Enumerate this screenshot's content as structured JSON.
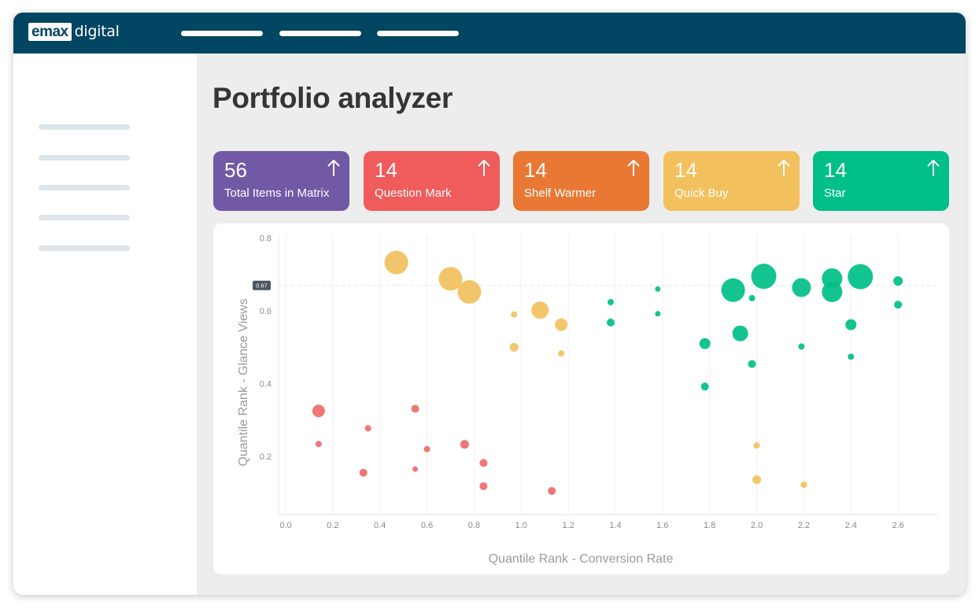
{
  "brand": {
    "logo_box": "emax",
    "logo_text": "digital"
  },
  "header": {
    "nav_items": 3
  },
  "sidebar": {
    "items": 5
  },
  "page": {
    "title": "Portfolio analyzer"
  },
  "cards": [
    {
      "count": "56",
      "label": "Total Items in Matrix",
      "color": "#7159a5",
      "icon": "arrow-up-icon"
    },
    {
      "count": "14",
      "label": "Question Mark",
      "color": "#f05b5b",
      "icon": "arrow-up-icon"
    },
    {
      "count": "14",
      "label": "Shelf Warmer",
      "color": "#e87833",
      "icon": "arrow-up-icon"
    },
    {
      "count": "14",
      "label": "Quick Buy",
      "color": "#f2c05d",
      "icon": "arrow-up-icon"
    },
    {
      "count": "14",
      "label": "Star",
      "color": "#00bf87",
      "icon": "arrow-up-icon"
    }
  ],
  "chart_data": {
    "type": "scatter",
    "xlabel": "Quantile Rank - Conversion Rate",
    "ylabel": "Quantile Rank - Glance Views",
    "xlim": [
      -0.03,
      2.77
    ],
    "ylim": [
      0.04,
      0.81
    ],
    "x_ticks": [
      "0.0",
      "0.2",
      "0.4",
      "0.6",
      "0.8",
      "1.0",
      "1.2",
      "1.4",
      "1.6",
      "1.8",
      "2.0",
      "2.2",
      "2.4",
      "2.6"
    ],
    "x_tick_values": [
      0,
      0.2,
      0.4,
      0.6,
      0.8,
      1.0,
      1.2,
      1.4,
      1.6,
      1.8,
      2.0,
      2.2,
      2.4,
      2.6
    ],
    "y_ticks": [
      "0.2",
      "0.4",
      "0.6",
      "0.8"
    ],
    "y_tick_values": [
      0.2,
      0.4,
      0.6,
      0.8
    ],
    "grid": "vertical",
    "reference_line": {
      "y": 0.67,
      "label": "0.67"
    },
    "series": [
      {
        "color": "#ee6b6b",
        "points": [
          {
            "x": 0.14,
            "y": 0.325,
            "r": 8
          },
          {
            "x": 0.14,
            "y": 0.234,
            "r": 4
          },
          {
            "x": 0.33,
            "y": 0.155,
            "r": 5
          },
          {
            "x": 0.35,
            "y": 0.277,
            "r": 4
          },
          {
            "x": 0.55,
            "y": 0.331,
            "r": 5
          },
          {
            "x": 0.55,
            "y": 0.165,
            "r": 3.5
          },
          {
            "x": 0.6,
            "y": 0.22,
            "r": 4
          },
          {
            "x": 0.76,
            "y": 0.233,
            "r": 5.5
          },
          {
            "x": 0.84,
            "y": 0.182,
            "r": 5
          },
          {
            "x": 0.84,
            "y": 0.118,
            "r": 5
          },
          {
            "x": 1.13,
            "y": 0.105,
            "r": 5
          }
        ]
      },
      {
        "color": "#f2c05d",
        "points": [
          {
            "x": 0.47,
            "y": 0.733,
            "r": 15
          },
          {
            "x": 0.7,
            "y": 0.688,
            "r": 15
          },
          {
            "x": 0.78,
            "y": 0.652,
            "r": 15
          },
          {
            "x": 1.08,
            "y": 0.602,
            "r": 11
          },
          {
            "x": 0.97,
            "y": 0.59,
            "r": 4
          },
          {
            "x": 1.17,
            "y": 0.562,
            "r": 8
          },
          {
            "x": 0.97,
            "y": 0.5,
            "r": 5.5
          },
          {
            "x": 1.17,
            "y": 0.483,
            "r": 4
          },
          {
            "x": 2.0,
            "y": 0.23,
            "r": 4
          },
          {
            "x": 2.0,
            "y": 0.136,
            "r": 5.5
          },
          {
            "x": 2.2,
            "y": 0.122,
            "r": 4
          }
        ]
      },
      {
        "color": "#00bf87",
        "points": [
          {
            "x": 1.38,
            "y": 0.624,
            "r": 4
          },
          {
            "x": 1.58,
            "y": 0.66,
            "r": 3.5
          },
          {
            "x": 1.38,
            "y": 0.568,
            "r": 5
          },
          {
            "x": 1.58,
            "y": 0.592,
            "r": 3.5
          },
          {
            "x": 1.78,
            "y": 0.51,
            "r": 7
          },
          {
            "x": 1.78,
            "y": 0.392,
            "r": 5
          },
          {
            "x": 1.9,
            "y": 0.657,
            "r": 15
          },
          {
            "x": 1.93,
            "y": 0.538,
            "r": 10
          },
          {
            "x": 1.98,
            "y": 0.635,
            "r": 4
          },
          {
            "x": 1.98,
            "y": 0.454,
            "r": 5
          },
          {
            "x": 2.03,
            "y": 0.695,
            "r": 16
          },
          {
            "x": 2.19,
            "y": 0.664,
            "r": 12
          },
          {
            "x": 2.19,
            "y": 0.502,
            "r": 4
          },
          {
            "x": 2.32,
            "y": 0.689,
            "r": 13
          },
          {
            "x": 2.32,
            "y": 0.652,
            "r": 13
          },
          {
            "x": 2.4,
            "y": 0.562,
            "r": 7
          },
          {
            "x": 2.4,
            "y": 0.474,
            "r": 4
          },
          {
            "x": 2.44,
            "y": 0.694,
            "r": 16
          },
          {
            "x": 2.6,
            "y": 0.682,
            "r": 6
          },
          {
            "x": 2.6,
            "y": 0.617,
            "r": 5
          }
        ]
      }
    ]
  }
}
